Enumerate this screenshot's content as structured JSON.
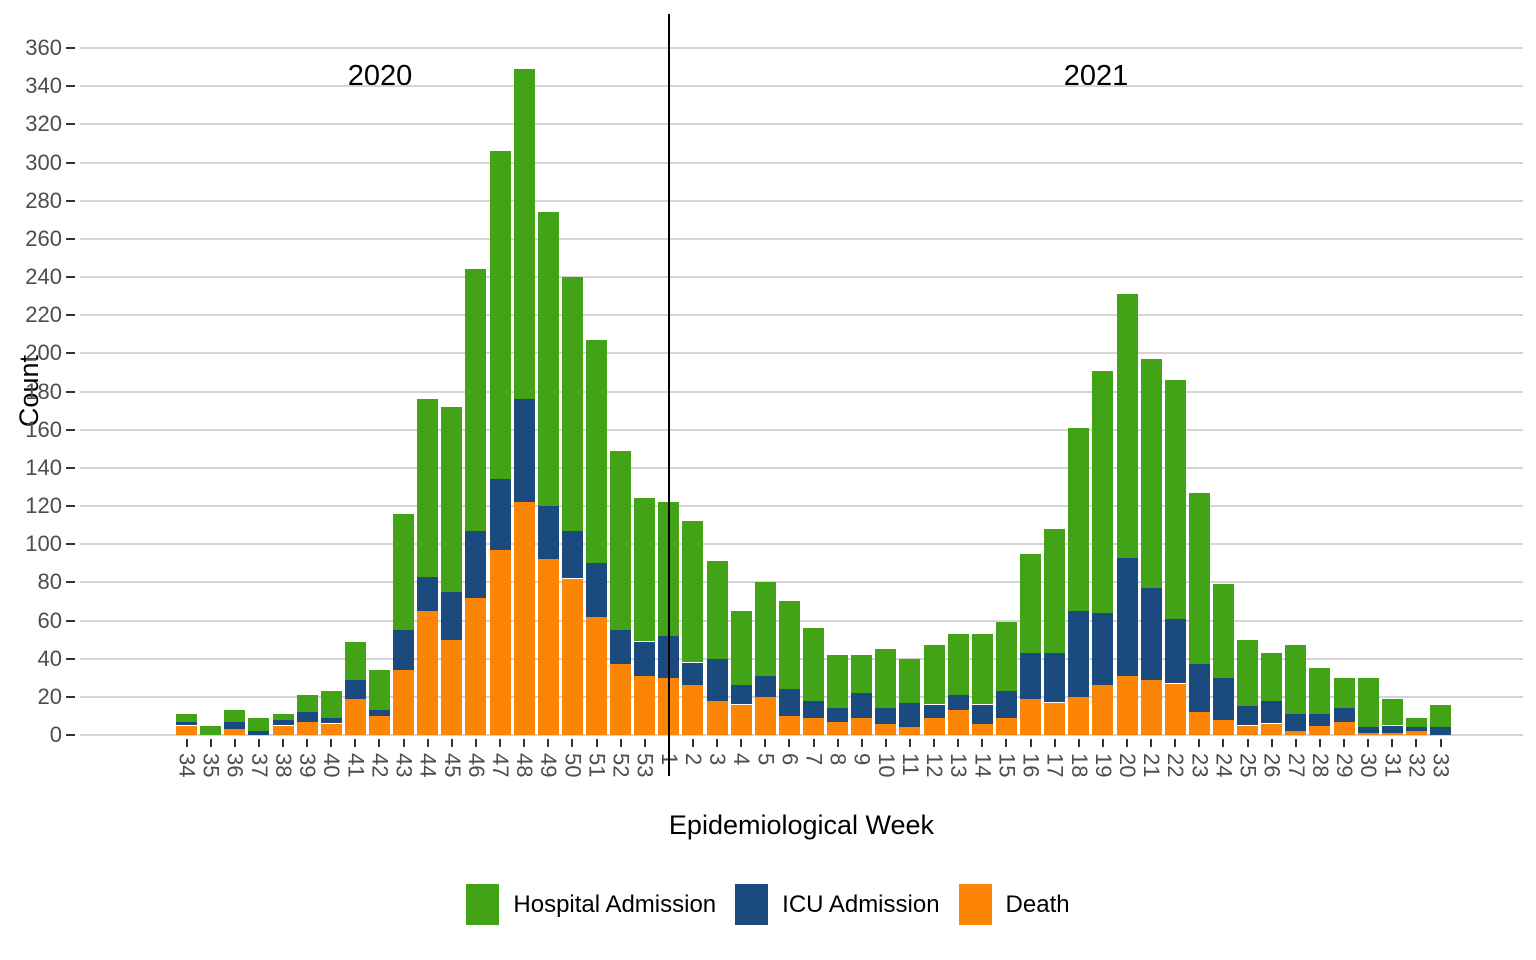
{
  "annotations": {
    "year_left": "2020",
    "year_right": "2021"
  },
  "y_axis": {
    "title": "Count",
    "tick_labels": [
      0,
      20,
      40,
      60,
      80,
      100,
      120,
      140,
      160,
      180,
      200,
      220,
      240,
      260,
      280,
      300,
      320,
      340,
      360
    ]
  },
  "x_axis": {
    "title": "Epidemiological Week"
  },
  "legend": {
    "items": [
      {
        "label": "Hospital Admission",
        "color": "#43A317"
      },
      {
        "label": "ICU Admission",
        "color": "#1B4B7E"
      },
      {
        "label": "Death",
        "color": "#FC8505"
      }
    ]
  },
  "chart_data": {
    "type": "bar",
    "stacked": true,
    "title": "",
    "xlabel": "Epidemiological Week",
    "ylabel": "Count",
    "ylim": [
      0,
      360
    ],
    "grid": "horizontal-major",
    "legend_position": "bottom",
    "divider_at_category": "1",
    "categories": [
      "34",
      "35",
      "36",
      "37",
      "38",
      "39",
      "40",
      "41",
      "42",
      "43",
      "44",
      "45",
      "46",
      "47",
      "48",
      "49",
      "50",
      "51",
      "52",
      "53",
      "1",
      "2",
      "3",
      "4",
      "5",
      "6",
      "7",
      "8",
      "9",
      "10",
      "11",
      "12",
      "13",
      "14",
      "15",
      "16",
      "17",
      "18",
      "19",
      "20",
      "21",
      "22",
      "23",
      "24",
      "25",
      "26",
      "27",
      "28",
      "29",
      "30",
      "31",
      "32",
      "33"
    ],
    "series": [
      {
        "name": "Death",
        "color": "#FC8505",
        "values": [
          5,
          0,
          3,
          0,
          5,
          7,
          6,
          19,
          10,
          34,
          65,
          50,
          72,
          97,
          122,
          92,
          82,
          62,
          37,
          31,
          30,
          26,
          18,
          16,
          20,
          10,
          9,
          7,
          9,
          6,
          4,
          9,
          13,
          6,
          9,
          19,
          17,
          20,
          26,
          31,
          29,
          27,
          12,
          8,
          5,
          6,
          2,
          5,
          7,
          1,
          1,
          2,
          0
        ]
      },
      {
        "name": "ICU Admission",
        "color": "#1B4B7E",
        "values": [
          2,
          0,
          4,
          2,
          3,
          5,
          3,
          10,
          3,
          21,
          18,
          25,
          35,
          37,
          54,
          28,
          25,
          28,
          18,
          18,
          22,
          12,
          22,
          10,
          11,
          14,
          9,
          7,
          13,
          8,
          13,
          7,
          8,
          10,
          14,
          24,
          26,
          45,
          38,
          62,
          48,
          34,
          25,
          22,
          10,
          12,
          9,
          6,
          7,
          3,
          4,
          2,
          4
        ]
      },
      {
        "name": "Hospital Admission",
        "color": "#43A317",
        "values": [
          4,
          5,
          6,
          7,
          3,
          9,
          14,
          20,
          21,
          61,
          93,
          97,
          137,
          172,
          173,
          154,
          133,
          117,
          94,
          75,
          70,
          74,
          51,
          39,
          49,
          46,
          38,
          28,
          20,
          31,
          23,
          31,
          32,
          37,
          36,
          52,
          65,
          96,
          127,
          138,
          120,
          125,
          90,
          49,
          35,
          25,
          36,
          24,
          16,
          26,
          14,
          5,
          12
        ]
      }
    ]
  }
}
